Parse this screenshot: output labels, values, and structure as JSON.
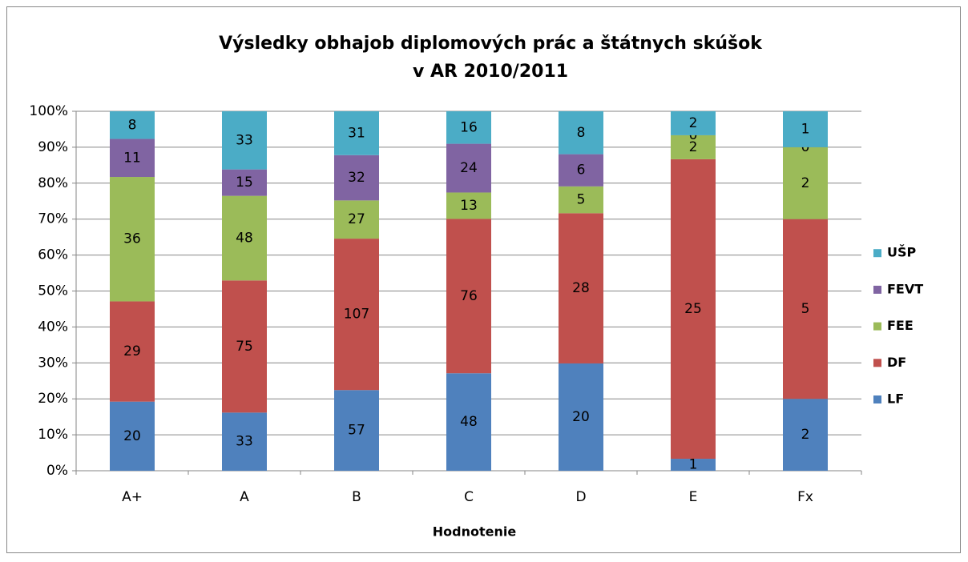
{
  "chart_data": {
    "type": "bar",
    "stacking": "percent",
    "title": [
      "Výsledky obhajob  diplomových prác a štátnych skúšok",
      "v AR 2010/2011"
    ],
    "x_label": "Hodnotenie",
    "categories": [
      "A+",
      "A",
      "B",
      "C",
      "D",
      "E",
      "Fx"
    ],
    "series": [
      {
        "name": "LF",
        "color": "#4f81bd",
        "values": [
          20,
          33,
          57,
          48,
          20,
          1,
          2
        ]
      },
      {
        "name": "DF",
        "color": "#c0504d",
        "values": [
          29,
          75,
          107,
          76,
          28,
          25,
          5
        ]
      },
      {
        "name": "FEE",
        "color": "#9bbb59",
        "values": [
          36,
          48,
          27,
          13,
          5,
          2,
          2
        ]
      },
      {
        "name": "FEVT",
        "color": "#8064a2",
        "values": [
          11,
          15,
          32,
          24,
          6,
          0,
          0
        ]
      },
      {
        "name": "UŠP",
        "color": "#4bacc6",
        "values": [
          8,
          33,
          31,
          16,
          8,
          2,
          1
        ]
      }
    ],
    "ylim": [
      0,
      100
    ],
    "yticks": [
      {
        "value": 0,
        "label": "0%"
      },
      {
        "value": 10,
        "label": "10%"
      },
      {
        "value": 20,
        "label": "20%"
      },
      {
        "value": 30,
        "label": "30%"
      },
      {
        "value": 40,
        "label": "40%"
      },
      {
        "value": 50,
        "label": "50%"
      },
      {
        "value": 60,
        "label": "60%"
      },
      {
        "value": 70,
        "label": "70%"
      },
      {
        "value": 80,
        "label": "80%"
      },
      {
        "value": 90,
        "label": "90%"
      },
      {
        "value": 100,
        "label": "100%"
      }
    ],
    "grid": true,
    "legend": "right"
  }
}
